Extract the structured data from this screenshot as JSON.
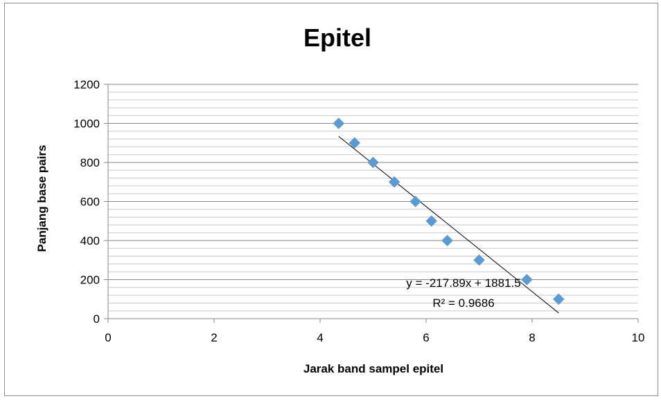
{
  "chart_data": {
    "type": "scatter",
    "title": "Epitel",
    "xlabel": "Jarak band sampel epitel",
    "ylabel": "Panjang base pairs",
    "xlim": [
      0,
      10
    ],
    "ylim": [
      0,
      1200
    ],
    "x_ticks": [
      0,
      2,
      4,
      6,
      8,
      10
    ],
    "y_ticks": [
      0,
      200,
      400,
      600,
      800,
      1000,
      1200
    ],
    "grid": "horizontal major and minor",
    "legend": "none",
    "marker": "diamond",
    "marker_color": "#5B9BD5",
    "series": [
      {
        "x": [
          4.35,
          4.65,
          5.0,
          5.4,
          5.8,
          6.1,
          6.4,
          7.0,
          7.9,
          8.5
        ],
        "y": [
          1000,
          900,
          800,
          700,
          600,
          500,
          400,
          300,
          200,
          100
        ]
      }
    ],
    "trendline": {
      "type": "linear",
      "slope": -217.89,
      "intercept": 1881.5,
      "x_range": [
        4.35,
        8.5
      ],
      "equation": "y = -217.89x + 1881.5",
      "r_squared": "R² = 0.9686"
    }
  }
}
